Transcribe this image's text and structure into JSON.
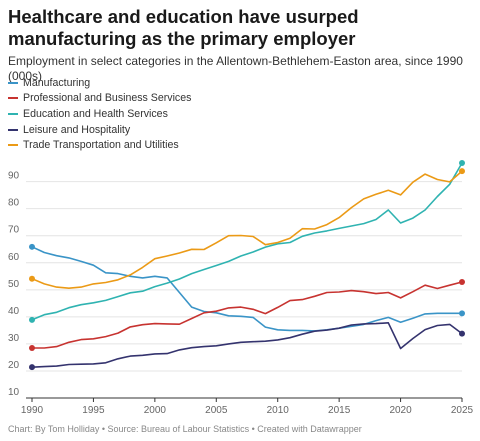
{
  "title": "Healthcare and education have usurped manufacturing as the primary employer",
  "subtitle": "Employment in select categories in the Allentown-Bethlehem-Easton area, since 1990 (000s)",
  "footer": "Chart: By Tom Holliday • Source: Bureau of Labour Statistics • Created with Datawrapper",
  "chart_data": {
    "type": "line",
    "title": "Healthcare and education have usurped manufacturing as the primary employer",
    "subtitle": "Employment in select categories in the Allentown-Bethlehem-Easton area, since 1990 (000s)",
    "xlabel": "",
    "ylabel": "",
    "xlim": [
      1990,
      2025
    ],
    "ylim": [
      10,
      98
    ],
    "x_ticks": [
      1990,
      1995,
      2000,
      2005,
      2010,
      2015,
      2020,
      2025
    ],
    "y_ticks": [
      10,
      20,
      30,
      40,
      50,
      60,
      70,
      80,
      90
    ],
    "grid": true,
    "legend_position": "top-left",
    "x": [
      1990,
      1991,
      1992,
      1993,
      1994,
      1995,
      1996,
      1997,
      1998,
      1999,
      2000,
      2001,
      2002,
      2003,
      2004,
      2005,
      2006,
      2007,
      2008,
      2009,
      2010,
      2011,
      2012,
      2013,
      2014,
      2015,
      2016,
      2017,
      2018,
      2019,
      2020,
      2021,
      2022,
      2023,
      2024,
      2025
    ],
    "series": [
      {
        "name": "Manufacturing",
        "color": "#3a94c7",
        "values": [
          65.9,
          63.8,
          62.6,
          61.8,
          60.5,
          59.1,
          56.3,
          56.0,
          55.0,
          54.4,
          55.0,
          54.4,
          49.0,
          43.6,
          42.0,
          41.5,
          40.4,
          40.2,
          39.8,
          36.2,
          35.2,
          35.0,
          35.0,
          34.8,
          35.2,
          35.8,
          36.5,
          37.2,
          38.6,
          39.8,
          38.0,
          39.5,
          41.1,
          41.3,
          41.3,
          41.3
        ]
      },
      {
        "name": "Professional and Business Services",
        "color": "#c73330",
        "values": [
          28.5,
          28.5,
          29.0,
          30.6,
          31.6,
          31.9,
          32.7,
          34.0,
          36.3,
          37.1,
          37.5,
          37.4,
          37.3,
          39.4,
          41.5,
          42.1,
          43.3,
          43.6,
          42.8,
          41.2,
          43.5,
          46.0,
          46.4,
          47.6,
          49.0,
          49.2,
          49.7,
          49.3,
          48.6,
          49.0,
          47.0,
          49.3,
          51.7,
          50.5,
          51.7,
          52.9
        ]
      },
      {
        "name": "Education and Health Services",
        "color": "#2fb3b1",
        "values": [
          38.9,
          40.8,
          41.7,
          43.4,
          44.5,
          45.2,
          46.1,
          47.5,
          48.9,
          49.5,
          51.2,
          52.5,
          54.0,
          56.0,
          57.5,
          59.0,
          60.5,
          62.5,
          64.0,
          65.8,
          67.0,
          67.5,
          69.8,
          71.0,
          71.8,
          72.7,
          73.6,
          74.5,
          76.0,
          79.5,
          74.7,
          76.5,
          79.5,
          84.5,
          89.0,
          96.9
        ]
      },
      {
        "name": "Leisure and Hospitality",
        "color": "#34336e",
        "values": [
          21.4,
          21.6,
          21.8,
          22.4,
          22.5,
          22.6,
          23.0,
          24.5,
          25.5,
          25.8,
          26.3,
          26.4,
          27.8,
          28.6,
          29.0,
          29.3,
          30.0,
          30.6,
          30.8,
          31.0,
          31.5,
          32.3,
          33.6,
          34.7,
          35.1,
          35.8,
          37.0,
          37.4,
          37.5,
          37.8,
          28.3,
          32.0,
          35.3,
          36.8,
          37.2,
          33.8
        ]
      },
      {
        "name": "Trade Transportation and Utilities",
        "color": "#eb9a16",
        "values": [
          54.1,
          52.2,
          51.0,
          50.6,
          51.0,
          52.2,
          52.7,
          53.7,
          55.5,
          58.3,
          61.5,
          62.5,
          63.6,
          65.0,
          64.9,
          67.4,
          70.0,
          70.1,
          69.7,
          66.7,
          67.5,
          69.1,
          72.6,
          72.5,
          74.1,
          76.7,
          80.4,
          83.6,
          85.3,
          86.8,
          85.1,
          89.8,
          92.8,
          90.8,
          89.9,
          93.9
        ]
      }
    ]
  }
}
